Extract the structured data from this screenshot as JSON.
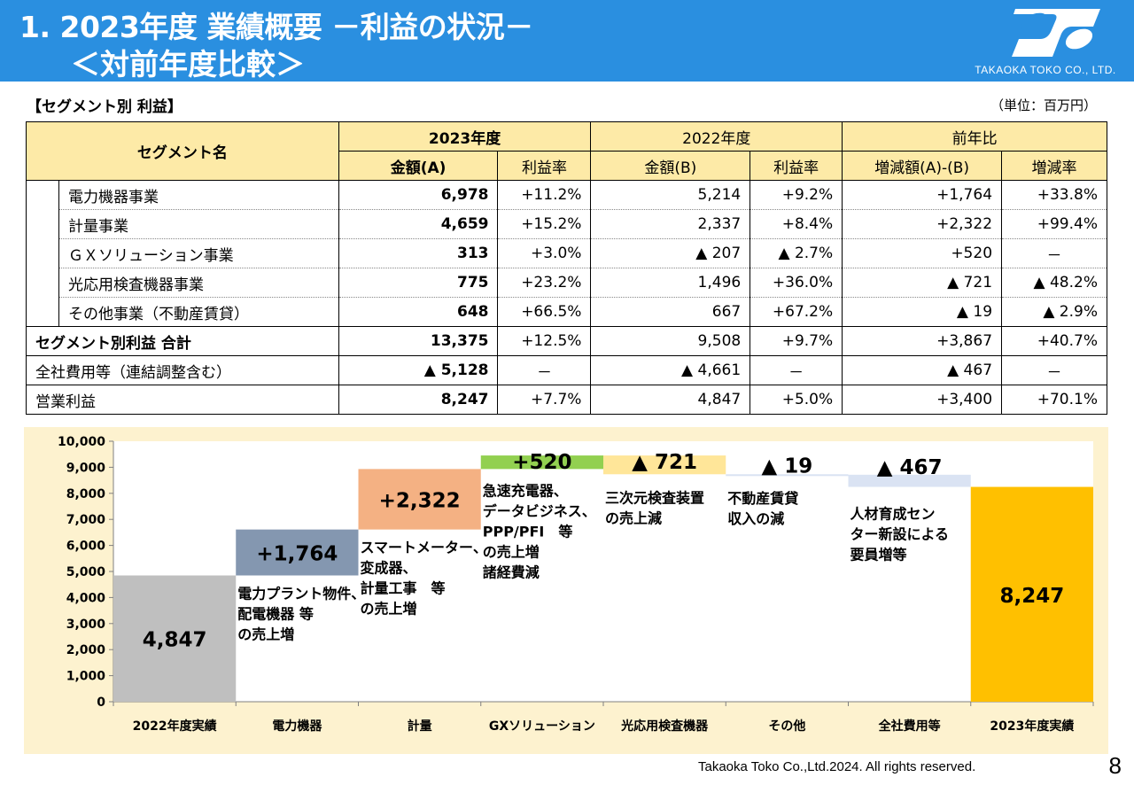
{
  "header": {
    "title_line1": "1. 2023年度 業績概要 －利益の状況－",
    "title_line2": "＜対前年度比較＞",
    "company": "TAKAOKA TOKO CO., LTD."
  },
  "section_title": "【セグメント別 利益】",
  "unit": "（単位：百万円）",
  "table": {
    "headers": {
      "segment": "セグメント名",
      "fy2023": "2023年度",
      "fy2022": "2022年度",
      "yoy": "前年比",
      "amount_a": "金額(A)",
      "margin_a": "利益率",
      "amount_b": "金額(B)",
      "margin_b": "利益率",
      "change": "増減額(A)-(B)",
      "change_rate": "増減率"
    },
    "rows": [
      {
        "name": "電力機器事業",
        "a": "6,978",
        "ma": "+11.2%",
        "b": "5,214",
        "mb": "+9.2%",
        "d": "+1,764",
        "r": "+33.8%"
      },
      {
        "name": "計量事業",
        "a": "4,659",
        "ma": "+15.2%",
        "b": "2,337",
        "mb": "+8.4%",
        "d": "+2,322",
        "r": "+99.4%"
      },
      {
        "name": "ＧＸソリューション事業",
        "a": "313",
        "ma": "+3.0%",
        "b": "▲ 207",
        "mb": "▲ 2.7%",
        "d": "+520",
        "r": "－"
      },
      {
        "name": "光応用検査機器事業",
        "a": "775",
        "ma": "+23.2%",
        "b": "1,496",
        "mb": "+36.0%",
        "d": "▲ 721",
        "r": "▲ 48.2%"
      },
      {
        "name": "その他事業（不動産賃貸）",
        "a": "648",
        "ma": "+66.5%",
        "b": "667",
        "mb": "+67.2%",
        "d": "▲ 19",
        "r": "▲ 2.9%"
      }
    ],
    "totals": [
      {
        "name": "セグメント別利益 合計",
        "a": "13,375",
        "ma": "+12.5%",
        "b": "9,508",
        "mb": "+9.7%",
        "d": "+3,867",
        "r": "+40.7%"
      },
      {
        "name": "全社費用等（連結調整含む）",
        "a": "▲ 5,128",
        "ma": "－",
        "b": "▲ 4,661",
        "mb": "－",
        "d": "▲ 467",
        "r": "－"
      },
      {
        "name": "営業利益",
        "a": "8,247",
        "ma": "+7.7%",
        "b": "4,847",
        "mb": "+5.0%",
        "d": "+3,400",
        "r": "+70.1%"
      }
    ]
  },
  "chart_data": {
    "type": "bar",
    "subtype": "waterfall",
    "ylim": [
      0,
      10000
    ],
    "yticks": [
      "0",
      "1,000",
      "2,000",
      "3,000",
      "4,000",
      "5,000",
      "6,000",
      "7,000",
      "8,000",
      "9,000",
      "10,000"
    ],
    "categories": [
      "2022年度実績",
      "電力機器",
      "計量",
      "GXソリューション",
      "光応用検査機器",
      "その他",
      "全社費用等",
      "2023年度実績"
    ],
    "bars": [
      {
        "start": 0,
        "end": 4847,
        "label": "4,847",
        "color": "#bfbfbf",
        "note": []
      },
      {
        "start": 4847,
        "end": 6611,
        "label": "+1,764",
        "color": "#8497b0",
        "note": [
          "電力プラント物件、",
          "配電機器 等",
          "の売上増"
        ]
      },
      {
        "start": 6611,
        "end": 8933,
        "label": "+2,322",
        "color": "#f4b183",
        "note": [
          "スマートメーター、",
          "変成器、",
          "計量工事　等",
          "の売上増"
        ]
      },
      {
        "start": 8933,
        "end": 9453,
        "label": "+520",
        "color": "#92d050",
        "note": [
          "急速充電器、",
          "データビジネス、",
          "PPP/PFI　等",
          "の売上増",
          "諸経費減"
        ]
      },
      {
        "start": 9453,
        "end": 8732,
        "label": "▲ 721",
        "color": "#ffe699",
        "note": [
          "三次元検査装置",
          "の売上減"
        ]
      },
      {
        "start": 8732,
        "end": 8713,
        "label": "▲ 19",
        "color": "#dae3f3",
        "note": [
          "不動産賃貸",
          "収入の減"
        ]
      },
      {
        "start": 8713,
        "end": 8247,
        "label": "▲ 467",
        "color": "#dae3f3",
        "note": [
          "人材育成セン",
          "ター新設による",
          "要員増等"
        ]
      },
      {
        "start": 0,
        "end": 8247,
        "label": "8,247",
        "color": "#ffc000",
        "note": []
      }
    ]
  },
  "footer": "Takaoka Toko Co.,Ltd.2024. All rights reserved.",
  "page_number": "8",
  "colors": {
    "header_bg": "#2a8fe0",
    "table_header_bg": "#fdeaa7",
    "chart_bg": "#fdf2cf"
  }
}
